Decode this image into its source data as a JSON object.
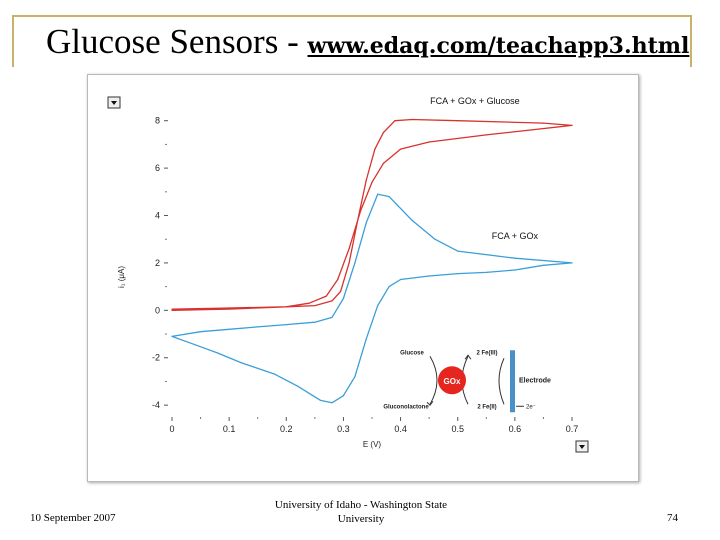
{
  "slide": {
    "title_main": "Glucose Sensors - ",
    "title_url": "www.edaq.com/teachapp3.html",
    "footer_date": "10 September 2007",
    "footer_uni_line1": "University of Idaho - Washington State",
    "footer_uni_line2": "University",
    "page_number": "74"
  },
  "colors": {
    "red": "#d8322e",
    "blue": "#3a9fd8",
    "bar": "#4a90c8",
    "frame": "#c9b36a"
  },
  "chart_data": {
    "type": "line",
    "xlabel": "E (V)",
    "ylabel": "i₁ (μA)",
    "xlim": [
      0,
      0.7
    ],
    "ylim": [
      -4.5,
      9
    ],
    "x_ticks": [
      "0",
      "0.1",
      "0.2",
      "0.3",
      "0.4",
      "0.5",
      "0.6",
      "0.7"
    ],
    "y_ticks": [
      "-4",
      "-2",
      "0",
      "2",
      "4",
      "6",
      "8"
    ],
    "series": [
      {
        "name": "FCA + GOx + Glucose",
        "color": "#d8322e",
        "points": [
          [
            0,
            0
          ],
          [
            0.1,
            0.05
          ],
          [
            0.2,
            0.15
          ],
          [
            0.24,
            0.3
          ],
          [
            0.27,
            0.6
          ],
          [
            0.29,
            1.3
          ],
          [
            0.31,
            2.6
          ],
          [
            0.33,
            4.2
          ],
          [
            0.35,
            5.4
          ],
          [
            0.37,
            6.2
          ],
          [
            0.4,
            6.8
          ],
          [
            0.45,
            7.1
          ],
          [
            0.55,
            7.4
          ],
          [
            0.7,
            7.8
          ],
          [
            0.65,
            7.9
          ],
          [
            0.5,
            8.0
          ],
          [
            0.42,
            8.05
          ],
          [
            0.39,
            8.0
          ],
          [
            0.37,
            7.5
          ],
          [
            0.355,
            6.8
          ],
          [
            0.34,
            5.5
          ],
          [
            0.325,
            3.8
          ],
          [
            0.31,
            2.0
          ],
          [
            0.295,
            0.8
          ],
          [
            0.28,
            0.4
          ],
          [
            0.25,
            0.2
          ],
          [
            0.2,
            0.15
          ],
          [
            0.1,
            0.1
          ],
          [
            0,
            0.05
          ]
        ]
      },
      {
        "name": "FCA + GOx",
        "color": "#3a9fd8",
        "points": [
          [
            0,
            -1.1
          ],
          [
            0.05,
            -0.9
          ],
          [
            0.1,
            -0.8
          ],
          [
            0.15,
            -0.7
          ],
          [
            0.2,
            -0.6
          ],
          [
            0.25,
            -0.5
          ],
          [
            0.28,
            -0.3
          ],
          [
            0.3,
            0.5
          ],
          [
            0.32,
            2.0
          ],
          [
            0.34,
            3.7
          ],
          [
            0.36,
            4.9
          ],
          [
            0.38,
            4.8
          ],
          [
            0.42,
            3.8
          ],
          [
            0.46,
            3.0
          ],
          [
            0.5,
            2.5
          ],
          [
            0.6,
            2.2
          ],
          [
            0.7,
            2.0
          ],
          [
            0.65,
            1.9
          ],
          [
            0.6,
            1.7
          ],
          [
            0.55,
            1.6
          ],
          [
            0.5,
            1.55
          ],
          [
            0.45,
            1.45
          ],
          [
            0.4,
            1.3
          ],
          [
            0.38,
            1.0
          ],
          [
            0.36,
            0.2
          ],
          [
            0.34,
            -1.2
          ],
          [
            0.32,
            -2.8
          ],
          [
            0.3,
            -3.6
          ],
          [
            0.28,
            -3.9
          ],
          [
            0.26,
            -3.8
          ],
          [
            0.22,
            -3.2
          ],
          [
            0.18,
            -2.7
          ],
          [
            0.12,
            -2.2
          ],
          [
            0.08,
            -1.8
          ],
          [
            0.04,
            -1.45
          ],
          [
            0,
            -1.1
          ]
        ]
      }
    ],
    "annotations": [
      {
        "text": "FCA + GOx + Glucose",
        "at": [
          0.53,
          8.7
        ]
      },
      {
        "text": "FCA + GOx",
        "at": [
          0.6,
          3.0
        ]
      }
    ],
    "inset": {
      "center_label": "GOx",
      "glucose": "Glucose",
      "gluconolactone": "Gluconolactone",
      "fe3": "2 Fe(III)",
      "fe2": "2 Fe(II)",
      "electrode": "Electrode",
      "electrons": "2e⁻"
    }
  }
}
